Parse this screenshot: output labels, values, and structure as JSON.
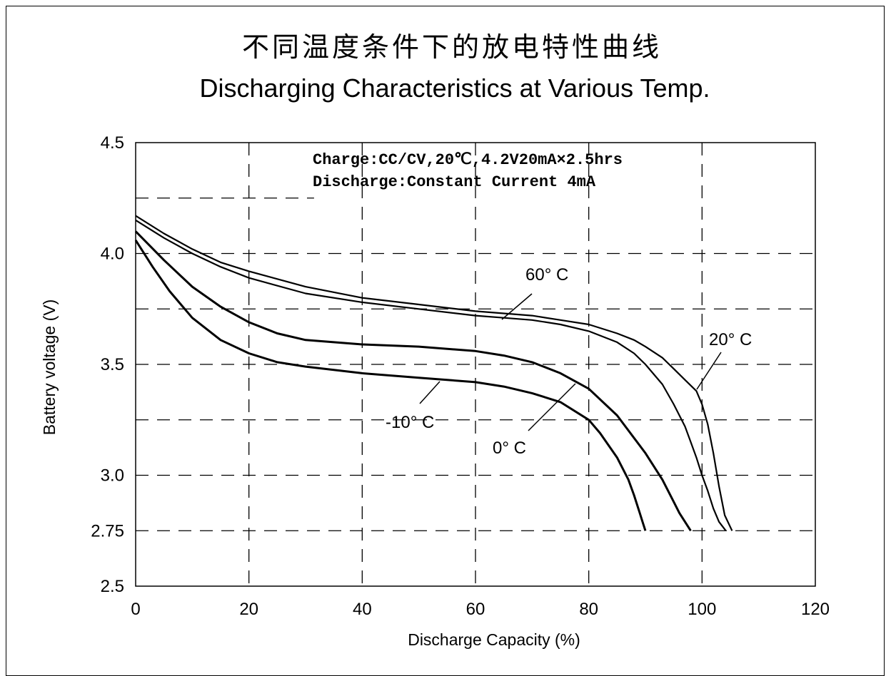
{
  "chart_data": {
    "type": "line",
    "title_cn": "不同温度条件下的放电特性曲线",
    "title": "Discharging Characteristics at Various Temp.",
    "xlabel": "Discharge Capacity (%)",
    "ylabel": "Battery voltage (V)",
    "xlim": [
      0,
      120
    ],
    "ylim": [
      2.5,
      4.5
    ],
    "x_ticks": [
      0,
      20,
      40,
      60,
      80,
      100,
      120
    ],
    "x_tick_labels": [
      "0",
      "20",
      "40",
      "60",
      "80",
      "100",
      "120"
    ],
    "y_ticks": [
      2.5,
      2.75,
      3.0,
      3.5,
      4.0,
      4.5
    ],
    "y_tick_labels": [
      "2.5",
      "2.75",
      "3.0",
      "3.5",
      "4.0",
      "4.5"
    ],
    "grid": "dashed",
    "grid_x": [
      20,
      40,
      60,
      80,
      100
    ],
    "grid_y": [
      2.75,
      3.0,
      3.25,
      3.5,
      3.75,
      4.0,
      4.25
    ],
    "conditions": [
      "Charge:CC/CV,20℃,4.2V20mA×2.5hrs",
      "Discharge:Constant Current 4mA"
    ],
    "series": [
      {
        "name": "60° C",
        "x": [
          0,
          5,
          10,
          15,
          20,
          30,
          40,
          50,
          60,
          65,
          70,
          75,
          80,
          85,
          88,
          90,
          93,
          95,
          97,
          99,
          100,
          101,
          102,
          103,
          104,
          105.3
        ],
        "y": [
          4.17,
          4.09,
          4.02,
          3.96,
          3.92,
          3.85,
          3.8,
          3.77,
          3.74,
          3.73,
          3.72,
          3.7,
          3.68,
          3.64,
          3.61,
          3.58,
          3.53,
          3.48,
          3.43,
          3.38,
          3.32,
          3.23,
          3.1,
          2.95,
          2.82,
          2.75
        ]
      },
      {
        "name": "20° C",
        "x": [
          0,
          5,
          10,
          15,
          20,
          30,
          40,
          50,
          60,
          65,
          70,
          75,
          80,
          85,
          88,
          90,
          93,
          95,
          97,
          98,
          99,
          100,
          101,
          102,
          103,
          104.2
        ],
        "y": [
          4.15,
          4.07,
          4.0,
          3.94,
          3.89,
          3.82,
          3.78,
          3.75,
          3.72,
          3.71,
          3.7,
          3.68,
          3.65,
          3.6,
          3.55,
          3.5,
          3.41,
          3.32,
          3.22,
          3.15,
          3.08,
          3.0,
          2.93,
          2.85,
          2.79,
          2.75
        ]
      },
      {
        "name": "0° C",
        "x": [
          0,
          5,
          10,
          15,
          20,
          25,
          30,
          40,
          50,
          60,
          65,
          70,
          75,
          80,
          85,
          90,
          93,
          95,
          96,
          97,
          98
        ],
        "y": [
          4.1,
          3.97,
          3.85,
          3.76,
          3.69,
          3.64,
          3.61,
          3.59,
          3.58,
          3.56,
          3.54,
          3.51,
          3.46,
          3.39,
          3.27,
          3.1,
          2.98,
          2.88,
          2.83,
          2.79,
          2.75
        ]
      },
      {
        "name": "-10° C",
        "x": [
          0,
          3,
          6,
          10,
          15,
          20,
          25,
          30,
          40,
          50,
          60,
          65,
          70,
          75,
          80,
          82,
          85,
          87,
          88,
          89,
          89.5,
          90
        ],
        "y": [
          4.06,
          3.94,
          3.83,
          3.71,
          3.61,
          3.55,
          3.51,
          3.49,
          3.46,
          3.44,
          3.42,
          3.4,
          3.37,
          3.33,
          3.25,
          3.19,
          3.08,
          2.98,
          2.91,
          2.83,
          2.79,
          2.75
        ]
      }
    ]
  }
}
